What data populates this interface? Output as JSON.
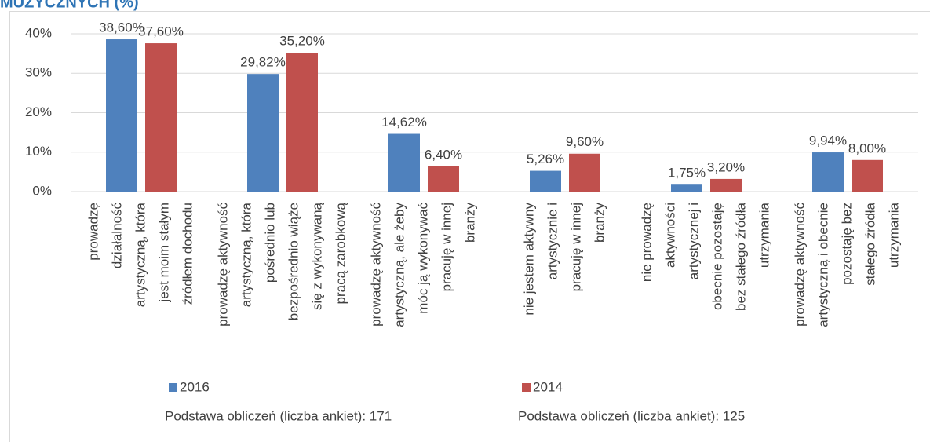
{
  "chart_data": {
    "type": "bar",
    "title": "MUZYCZNYCH (%)",
    "categories": [
      [
        "prowadzę",
        "działalność",
        "artystyczną, która",
        "jest moim stałym",
        "źródłem dochodu"
      ],
      [
        "prowadzę aktywność",
        "artystyczną, która",
        "pośrednio lub",
        "bezpośrednio wiąże",
        "się z wykonywaną",
        "pracą zarobkową"
      ],
      [
        "prowadzę aktywność",
        "artystyczną, ale żeby",
        "móc ją wykonywać",
        "pracuję w innej",
        "branży"
      ],
      [
        "nie jestem aktywny",
        "artystycznie i",
        "pracuję w innej",
        "branży"
      ],
      [
        "nie prowadzę",
        "aktywności",
        "artystycznej i",
        "obecnie pozostaję",
        "bez stałego źródła",
        "utrzymania"
      ],
      [
        "prowadzę aktywność",
        "artystyczną i obecnie",
        "pozostaję bez",
        "stałego źródła",
        "utrzymania"
      ]
    ],
    "series": [
      {
        "name": "2016",
        "note": "Podstawa obliczeń (liczba ankiet): 171",
        "color": "#4f81bd",
        "values": [
          38.6,
          29.82,
          14.62,
          5.26,
          1.75,
          9.94
        ],
        "value_labels": [
          "38,60%",
          "29,82%",
          "14,62%",
          "5,26%",
          "1,75%",
          "9,94%"
        ]
      },
      {
        "name": "2014",
        "note": "Podstawa obliczeń (liczba ankiet): 125",
        "color": "#c0504d",
        "values": [
          37.6,
          35.2,
          6.4,
          9.6,
          3.2,
          8.0
        ],
        "value_labels": [
          "37,60%",
          "35,20%",
          "6,40%",
          "9,60%",
          "3,20%",
          "8,00%"
        ]
      }
    ],
    "ylim": [
      0,
      40
    ],
    "yticks": [
      {
        "value": 0,
        "label": "0%"
      },
      {
        "value": 10,
        "label": "10%"
      },
      {
        "value": 20,
        "label": "20%"
      },
      {
        "value": 30,
        "label": "30%"
      },
      {
        "value": 40,
        "label": "40%"
      }
    ],
    "grid": true
  }
}
